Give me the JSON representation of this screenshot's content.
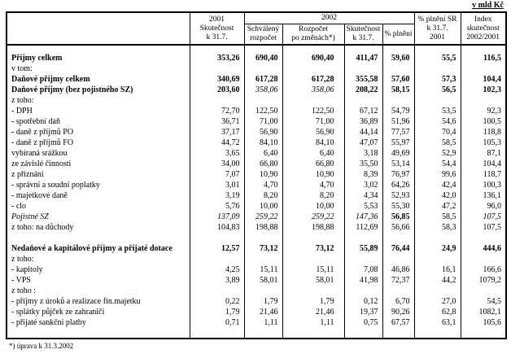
{
  "page": {
    "unit_label": "v mld Kč",
    "footnote": "*) úprava k 31.3.2002"
  },
  "table": {
    "header": {
      "col_2001": "2001\nSkutečnost\nk 31.7.",
      "col_2002": "2002",
      "sub_schvaleny": "Schválený\nrozpočet",
      "sub_rozpocet_zmeny": "Rozpočet\npo změnách*)",
      "sub_skutecnost": "Skutečnost\nk 31.7.",
      "sub_plneni": "% plnění",
      "col_plneni_sr": "% plnění SR\nk 31.7.\n2001",
      "col_index": "Index\nskutečnost\n2002/2001"
    },
    "rows": [
      {
        "blank": true,
        "cls": "gap-row",
        "label": "",
        "values": [
          "",
          "",
          "",
          "",
          "",
          "",
          ""
        ]
      },
      {
        "label": "Příjmy celkem",
        "indent": 0,
        "style": "bold",
        "values": [
          "353,26",
          "690,40",
          "690,40",
          "411,47",
          "59,60",
          "55,5",
          "116,5"
        ]
      },
      {
        "label": "v tom:",
        "indent": 0,
        "style": "normal",
        "values": [
          "",
          "",
          "",
          "",
          "",
          "",
          ""
        ]
      },
      {
        "label": "Daňové příjmy celkem",
        "indent": 0,
        "style": "bold",
        "values": [
          "340,69",
          "617,28",
          "617,28",
          "355,58",
          "57,60",
          "57,3",
          "104,4"
        ]
      },
      {
        "label": "Daňové příjmy (bez pojistného SZ)",
        "indent": 0,
        "style": "bold",
        "values": [
          "203,60",
          "358,06",
          "358,06",
          "208,22",
          "58,15",
          "56,5",
          "102,3"
        ],
        "value_styles": [
          "bold",
          "italic",
          "italic",
          "bold",
          "bold",
          "bold",
          "bold"
        ]
      },
      {
        "label": "z toho:",
        "indent": 0,
        "style": "normal",
        "values": [
          "",
          "",
          "",
          "",
          "",
          "",
          ""
        ]
      },
      {
        "label": "- DPH",
        "indent": 1,
        "style": "normal",
        "values": [
          "72,70",
          "122,50",
          "122,50",
          "67,12",
          "54,79",
          "53,5",
          "92,3"
        ]
      },
      {
        "label": "- spotřební daň",
        "indent": 1,
        "style": "normal",
        "values": [
          "36,71",
          "71,00",
          "71,00",
          "36,89",
          "51,96",
          "54,6",
          "100,5"
        ]
      },
      {
        "label": "- daně z příjmů PO",
        "indent": 1,
        "style": "normal",
        "values": [
          "37,17",
          "56,90",
          "56,90",
          "44,14",
          "77,57",
          "70,4",
          "118,8"
        ]
      },
      {
        "label": "- daně z příjmů FO",
        "indent": 1,
        "style": "normal",
        "values": [
          "44,72",
          "84,10",
          "84,10",
          "47,07",
          "55,97",
          "58,5",
          "105,3"
        ]
      },
      {
        "label": "vybíraná srážkou",
        "indent": 2,
        "style": "normal",
        "values": [
          "3,65",
          "6,40",
          "6,40",
          "3,18",
          "49,69",
          "52,9",
          "87,1"
        ]
      },
      {
        "label": "ze závislé činnosti",
        "indent": 2,
        "style": "normal",
        "values": [
          "34,00",
          "66,80",
          "66,80",
          "35,50",
          "53,14",
          "54,4",
          "104,4"
        ]
      },
      {
        "label": "z přiznání",
        "indent": 2,
        "style": "normal",
        "values": [
          "7,07",
          "10,90",
          "10,90",
          "8,39",
          "76,97",
          "99,6",
          "118,7"
        ]
      },
      {
        "label": "- správní a soudní poplatky",
        "indent": 1,
        "style": "normal",
        "values": [
          "3,01",
          "4,70",
          "4,70",
          "3,02",
          "64,26",
          "42,4",
          "100,3"
        ]
      },
      {
        "label": "- majetkové daně",
        "indent": 1,
        "style": "normal",
        "values": [
          "3,19",
          "8,20",
          "8,20",
          "4,34",
          "52,93",
          "42,0",
          "136,1"
        ]
      },
      {
        "label": "- clo",
        "indent": 1,
        "style": "normal",
        "values": [
          "5,76",
          "10,00",
          "10,00",
          "5,53",
          "55,30",
          "47,2",
          "96,0"
        ]
      },
      {
        "label": "Pojistné SZ",
        "indent": 0,
        "style": "italic",
        "values": [
          "137,09",
          "259,22",
          "259,22",
          "147,36",
          "56,85",
          "58,5",
          "107,5"
        ],
        "value_styles": [
          "italic",
          "italic",
          "italic",
          "italic",
          "bold",
          "normal",
          "italic"
        ]
      },
      {
        "label": "z toho: na důchody",
        "indent": 2,
        "style": "normal",
        "values": [
          "104,83",
          "198,88",
          "198,88",
          "112,69",
          "56,66",
          "58,3",
          "107,5"
        ]
      },
      {
        "blank": true,
        "label": "",
        "values": [
          "",
          "",
          "",
          "",
          "",
          "",
          ""
        ]
      },
      {
        "label": "Nedaňové a kapitálové příjmy a přijaté dotace",
        "indent": 0,
        "style": "bold",
        "values": [
          "12,57",
          "73,12",
          "73,12",
          "55,89",
          "76,44",
          "24,9",
          "444,6"
        ]
      },
      {
        "label": "z toho:",
        "indent": 0,
        "style": "normal",
        "values": [
          "",
          "",
          "",
          "",
          "",
          "",
          ""
        ]
      },
      {
        "label": "- kapitoly",
        "indent": 1,
        "style": "normal",
        "values": [
          "4,25",
          "15,11",
          "15,11",
          "7,08",
          "46,86",
          "16,1",
          "166,6"
        ]
      },
      {
        "label": "- VPS",
        "indent": 1,
        "style": "normal",
        "values": [
          "3,89",
          "58,01",
          "58,01",
          "41,98",
          "72,37",
          "44,2",
          "1079,2"
        ]
      },
      {
        "label": "z toho :",
        "indent": 3,
        "style": "normal",
        "values": [
          "",
          "",
          "",
          "",
          "",
          "",
          ""
        ]
      },
      {
        "label": "- příjmy z úroků a realizace fin.majetku",
        "indent": 4,
        "style": "normal",
        "values": [
          "0,22",
          "1,79",
          "1,79",
          "0,12",
          "6,70",
          "27,0",
          "54,5"
        ]
      },
      {
        "label": "- splátky půjček ze zahraničí",
        "indent": 4,
        "style": "normal",
        "values": [
          "1,79",
          "21,46",
          "21,46",
          "19,37",
          "90,26",
          "62,8",
          "1082,1"
        ]
      },
      {
        "label": "- přijaté sankční platby",
        "indent": 0,
        "style": "normal",
        "values": [
          "0,71",
          "1,11",
          "1,11",
          "0,75",
          "67,57",
          "63,1",
          "105,6"
        ]
      },
      {
        "blank": true,
        "label": "",
        "values": [
          "",
          "",
          "",
          "",
          "",
          "",
          ""
        ]
      }
    ]
  }
}
